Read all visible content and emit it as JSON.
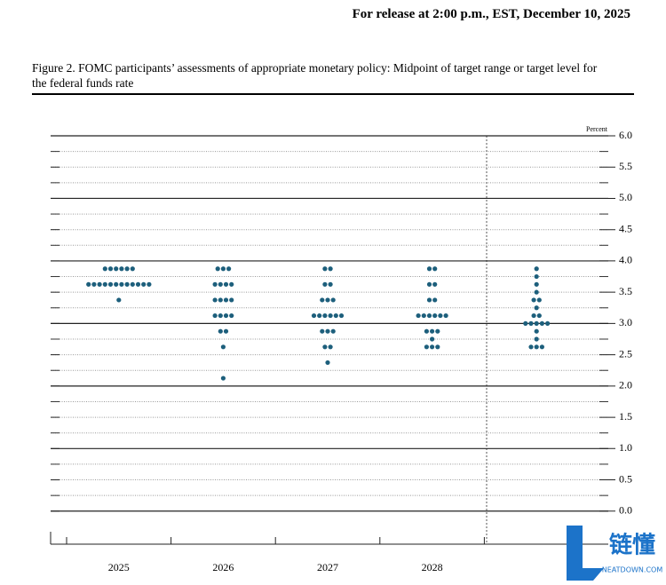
{
  "header": "For release at 2:00 p.m., EST, December 10, 2025",
  "chart_data": {
    "type": "dotplot",
    "title": "Figure 2. FOMC participants’ assessments of appropriate monetary policy: Midpoint of target range or target level for the federal funds rate",
    "y_label": "Percent",
    "color": "#1d5f7c",
    "ylim": [
      -0.5,
      6
    ],
    "yticks": [
      {
        "value": 0,
        "label": "0.0"
      },
      0.5,
      {
        "value": 1,
        "label": "1.0"
      },
      1.5,
      {
        "value": 2,
        "label": "2.0"
      },
      2.5,
      {
        "value": 3,
        "label": "3.0"
      },
      3.5,
      {
        "value": 4,
        "label": "4.0"
      },
      4.5,
      {
        "value": 5,
        "label": "5.0"
      },
      5.5,
      {
        "value": 6,
        "label": "6.0"
      }
    ],
    "minor_yticks": [
      0.25,
      0.75,
      1.25,
      1.75,
      2.25,
      2.75,
      3.25,
      3.75,
      4.25,
      4.75,
      5.25,
      5.75
    ],
    "columns": [
      {
        "label": "2025",
        "levels": [
          3.875,
          3.625,
          3.375
        ],
        "counts": [
          6,
          12,
          1
        ]
      },
      {
        "label": "2026",
        "levels": [
          3.875,
          3.625,
          3.375,
          3.125,
          2.875,
          2.625,
          2.125
        ],
        "counts": [
          3,
          4,
          4,
          4,
          2,
          1,
          1
        ]
      },
      {
        "label": "2027",
        "levels": [
          3.875,
          3.625,
          3.375,
          3.125,
          2.875,
          2.625,
          2.375
        ],
        "counts": [
          2,
          2,
          3,
          6,
          3,
          2,
          1
        ]
      },
      {
        "label": "2028",
        "levels": [
          3.875,
          3.625,
          3.375,
          3.125,
          2.875,
          2.75,
          2.625
        ],
        "counts": [
          2,
          2,
          2,
          6,
          3,
          1,
          3
        ]
      },
      {
        "label": null,
        "levels": [
          3.875,
          3.75,
          3.625,
          3.5,
          3.375,
          3.25,
          3.125,
          3.0,
          2.875,
          2.75,
          2.625
        ],
        "counts": [
          1,
          1,
          1,
          1,
          2,
          1,
          2,
          5,
          1,
          1,
          3
        ]
      }
    ]
  },
  "watermark": {
    "brand": "链懂",
    "site": "NEATDOWN.COM"
  }
}
